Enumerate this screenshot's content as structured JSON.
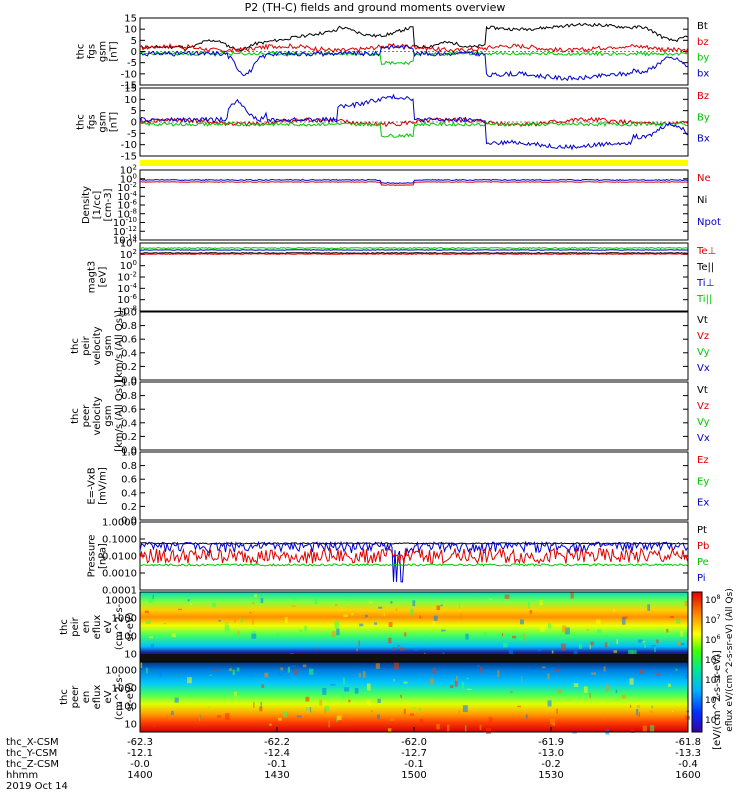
{
  "title": "P2 (TH-C) fields and ground moments overview",
  "chart_data": {
    "type": "line",
    "title": "P2 (TH-C) fields and ground moments overview",
    "x_axis": {
      "rows": [
        {
          "label": "thc_X-CSM",
          "values": [
            "-62.3",
            "-62.2",
            "-62.0",
            "-61.9",
            "-61.8"
          ]
        },
        {
          "label": "thc_Y-CSM",
          "values": [
            "-12.1",
            "-12.4",
            "-12.7",
            "-13.0",
            "-13.3"
          ]
        },
        {
          "label": "thc_Z-CSM",
          "values": [
            "-0.0",
            "-0.1",
            "-0.1",
            "-0.2",
            "-0.4"
          ]
        },
        {
          "label": "hhmm",
          "values": [
            "1400",
            "1430",
            "1500",
            "1530",
            "1600"
          ]
        }
      ],
      "date": "2019 Oct 14",
      "range": [
        "1400",
        "1600"
      ]
    },
    "panels": [
      {
        "ylabel": [
          "thc",
          "fgs",
          "gsm",
          "[nT]"
        ],
        "ylim": [
          -15,
          15
        ],
        "ticks": [
          "15",
          "10",
          "5",
          "0",
          "-5",
          "-10",
          "-15"
        ],
        "legend": [
          {
            "name": "Bt",
            "color": "#000000"
          },
          {
            "name": "bz",
            "color": "#dd0000"
          },
          {
            "name": "by",
            "color": "#00c800"
          },
          {
            "name": "bx",
            "color": "#0000cc"
          }
        ]
      },
      {
        "ylabel": [
          "thc",
          "fgs",
          "gsm",
          "[nT]"
        ],
        "ylim": [
          -15,
          15
        ],
        "ticks": [
          "15",
          "10",
          "5",
          "0",
          "-5",
          "-10",
          "-15"
        ],
        "legend": [
          {
            "name": "Bz",
            "color": "#dd0000"
          },
          {
            "name": "By",
            "color": "#00c800"
          },
          {
            "name": "Bx",
            "color": "#0000cc"
          }
        ]
      },
      {
        "ylabel": [
          "Density",
          "[1/cc]",
          "[cm-3]"
        ],
        "scale": "log",
        "ticks": [
          "10^2",
          "10^0",
          "10^-2",
          "10^-4",
          "10^-6",
          "10^-8",
          "10^-10",
          "10^-12",
          "10^-14"
        ],
        "legend": [
          {
            "name": "Ne",
            "color": "#dd0000"
          },
          {
            "name": "Ni",
            "color": "#000000"
          },
          {
            "name": "Npot",
            "color": "#0000cc"
          }
        ]
      },
      {
        "ylabel": [
          "magt3",
          "[eV]"
        ],
        "scale": "log",
        "ticks": [
          "10^4",
          "10^2",
          "10^0",
          "10^-2",
          "10^-4",
          "10^-6",
          "10^-8"
        ],
        "legend": [
          {
            "name": "Te⊥",
            "color": "#dd0000"
          },
          {
            "name": "Te||",
            "color": "#000000"
          },
          {
            "name": "Ti⊥",
            "color": "#0000cc"
          },
          {
            "name": "Ti||",
            "color": "#00c800"
          }
        ]
      },
      {
        "ylabel": [
          "thc",
          "peir",
          "velocity",
          "gsm",
          "[km/s (All Qs)]"
        ],
        "ylim": [
          0,
          1
        ],
        "ticks": [
          "1.0",
          "0.8",
          "0.6",
          "0.4",
          "0.2",
          "0.0"
        ],
        "legend": [
          {
            "name": "Vt",
            "color": "#000000"
          },
          {
            "name": "Vz",
            "color": "#dd0000"
          },
          {
            "name": "Vy",
            "color": "#00c800"
          },
          {
            "name": "Vx",
            "color": "#0000cc"
          }
        ]
      },
      {
        "ylabel": [
          "thc",
          "peer",
          "velocity",
          "gsm",
          "[km/s (All Qs)]"
        ],
        "ylim": [
          0,
          1
        ],
        "ticks": [
          "1.0",
          "0.8",
          "0.6",
          "0.4",
          "0.2",
          "0.0"
        ],
        "legend": [
          {
            "name": "Vt",
            "color": "#000000"
          },
          {
            "name": "Vz",
            "color": "#dd0000"
          },
          {
            "name": "Vy",
            "color": "#00c800"
          },
          {
            "name": "Vx",
            "color": "#0000cc"
          }
        ]
      },
      {
        "ylabel": [
          "E=-VxB",
          "[mV/m]"
        ],
        "ylim": [
          0,
          1
        ],
        "ticks": [
          "1.0",
          "0.8",
          "0.6",
          "0.4",
          "0.2",
          "0.0"
        ],
        "legend": [
          {
            "name": "Ez",
            "color": "#dd0000"
          },
          {
            "name": "Ey",
            "color": "#00c800"
          },
          {
            "name": "Ex",
            "color": "#0000cc"
          }
        ]
      },
      {
        "ylabel": [
          "Pressure",
          "[nPa]"
        ],
        "scale": "log",
        "ticks": [
          "1.0000",
          "0.1000",
          "0.0100",
          "0.0010",
          "0.0001"
        ],
        "legend": [
          {
            "name": "Pt",
            "color": "#000000"
          },
          {
            "name": "Pb",
            "color": "#dd0000"
          },
          {
            "name": "Pe",
            "color": "#00c800"
          },
          {
            "name": "Pi",
            "color": "#0000cc"
          }
        ]
      },
      {
        "type": "heatmap",
        "ylabel": [
          "thc",
          "peir",
          "en",
          "eflux",
          "eV",
          "(cm^2-s-",
          "sr-eV)"
        ],
        "scale": "log",
        "ticks": [
          "10000",
          "1000",
          "100",
          "10"
        ]
      },
      {
        "type": "heatmap",
        "ylabel": [
          "thc",
          "peer",
          "en",
          "eflux",
          "eV",
          "(cm^2-s-",
          "sr-eV)"
        ],
        "scale": "log",
        "ticks": [
          "10000",
          "1000",
          "100",
          "10"
        ]
      }
    ],
    "colorbar": {
      "ticks": [
        "10^8",
        "10^7",
        "10^6",
        "10^5",
        "10^4",
        "10^3",
        "10^2"
      ],
      "label": "[eV/(cm^2-s-sr-eV)]",
      "overlay_label": "eflux eV/(cm^2-s-sr-eV) (All Qs)"
    },
    "colors": {
      "black": "#000000",
      "red": "#dd0000",
      "green": "#00c800",
      "blue": "#0000cc",
      "bar": "#ffff00"
    }
  }
}
